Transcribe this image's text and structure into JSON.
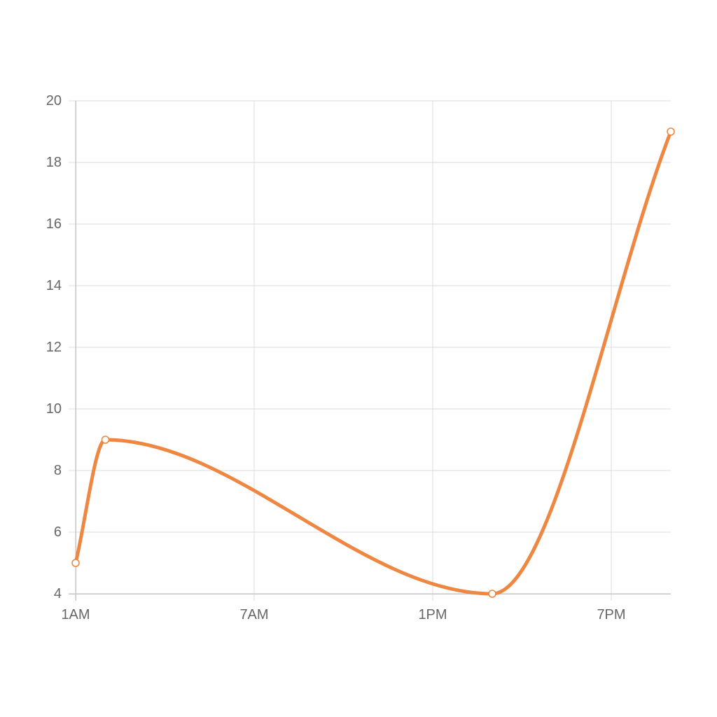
{
  "chart_data": {
    "type": "line",
    "title": "",
    "xlabel": "",
    "ylabel": "",
    "x_ticks": [
      "1AM",
      "7AM",
      "1PM",
      "7PM"
    ],
    "x_tick_hours": [
      1,
      7,
      13,
      19
    ],
    "xlim": [
      1,
      21
    ],
    "ylim": [
      4,
      20
    ],
    "y_ticks": [
      4,
      6,
      8,
      10,
      12,
      14,
      16,
      18,
      20
    ],
    "grid": true,
    "legend": "none",
    "colors": {
      "series": "#ed8741",
      "grid": "#dcdcdc",
      "axis": "#c4c4c4",
      "tick_text": "#666666"
    },
    "series": [
      {
        "points": [
          {
            "x": 1,
            "y": 5
          },
          {
            "x": 2,
            "y": 9
          },
          {
            "x": 15,
            "y": 4
          },
          {
            "x": 21,
            "y": 19
          }
        ]
      }
    ]
  }
}
